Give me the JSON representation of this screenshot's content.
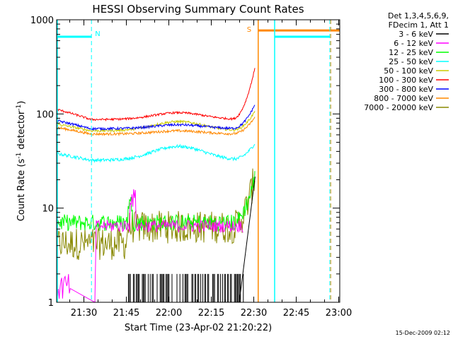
{
  "chart_data": {
    "type": "line",
    "title": "HESSI Observing Summary Count Rates",
    "xlabel": "Start Time (23-Apr-02 21:20:22)",
    "ylabel_main": "Count Rate (s",
    "ylabel_sup1": "-1",
    "ylabel_mid": " detector",
    "ylabel_sup2": "-1",
    "ylabel_end": ")",
    "yscale": "log",
    "ylim": [
      1,
      1000
    ],
    "xlim_minutes": [
      0,
      100
    ],
    "y_ticks": [
      "1",
      "10",
      "100",
      "1000"
    ],
    "x_ticks": [
      {
        "label": "21:30",
        "minute": 9.63
      },
      {
        "label": "21:45",
        "minute": 24.63
      },
      {
        "label": "22:00",
        "minute": 39.63
      },
      {
        "label": "22:15",
        "minute": 54.63
      },
      {
        "label": "22:30",
        "minute": 69.63
      },
      {
        "label": "22:45",
        "minute": 84.63
      },
      {
        "label": "23:00",
        "minute": 99.63
      }
    ],
    "legend_header": [
      "Det 1,3,4,5,6,9,",
      "FDecim 1, Att 1"
    ],
    "series": [
      {
        "name": "3 - 6 keV",
        "color": "#000000"
      },
      {
        "name": "6 - 12 keV",
        "color": "#ff00ff"
      },
      {
        "name": "12 - 25 keV",
        "color": "#00ff00"
      },
      {
        "name": "25 - 50 keV",
        "color": "#00ffff"
      },
      {
        "name": "50 - 100 keV",
        "color": "#cccc00"
      },
      {
        "name": "100 - 300 keV",
        "color": "#ff0000"
      },
      {
        "name": "300 - 800 keV",
        "color": "#0000ff"
      },
      {
        "name": "800 - 7000 keV",
        "color": "#ff8800"
      },
      {
        "name": "7000 - 20000 keV",
        "color": "#888800"
      }
    ],
    "annotations": [
      {
        "label": "N",
        "color": "#00ffff",
        "minute": 12.3
      },
      {
        "label": "S",
        "color": "#ff8800",
        "minute": 71.2
      }
    ],
    "stamp": "15-Dec-2009 02:12"
  }
}
